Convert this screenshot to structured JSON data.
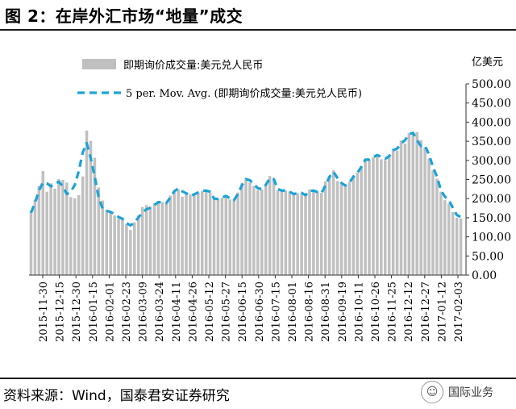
{
  "figure_title": "图 2：在岸外汇市场“地量”成交",
  "source_text": "资料来源：Wind，国泰君安证券研究",
  "watermark": "国际业务",
  "colors": {
    "bar": "#c0c0c0",
    "line": "#1aa3d9",
    "text": "#000000"
  },
  "chart_data": {
    "type": "bar",
    "unit": "亿美元",
    "legend": [
      {
        "label": "即期询价成交量:美元兑人民币",
        "kind": "bar"
      },
      {
        "label": "5 per. Mov. Avg. (即期询价成交量:美元兑人民币)",
        "kind": "dashed-line"
      }
    ],
    "legend_position": "top-left",
    "grid": false,
    "ylim": [
      0,
      500
    ],
    "y_ticks": [
      "500.00",
      "450.00",
      "400.00",
      "350.00",
      "300.00",
      "250.00",
      "200.00",
      "150.00",
      "100.00",
      "50.00",
      "0.00"
    ],
    "x_ticks": [
      "2015-11-30",
      "2015-12-15",
      "2015-12-30",
      "2016-01-15",
      "2016-02-01",
      "2016-02-23",
      "2016-03-09",
      "2016-03-24",
      "2016-04-11",
      "2016-04-26",
      "2016-05-12",
      "2016-05-27",
      "2016-06-15",
      "2016-06-30",
      "2016-07-15",
      "2016-08-01",
      "2016-08-16",
      "2016-08-31",
      "2016-09-19",
      "2016-10-11",
      "2016-10-26",
      "2016-11-25",
      "2016-12-12",
      "2016-12-27",
      "2017-01-12",
      "2017-02-03"
    ],
    "series": [
      {
        "name": "即期询价成交量:美元兑人民币",
        "type": "bar",
        "values": [
          168,
          197,
          233,
          272,
          218,
          240,
          226,
          251,
          249,
          242,
          204,
          201,
          209,
          258,
          378,
          351,
          307,
          229,
          195,
          171,
          166,
          156,
          148,
          150,
          133,
          118,
          138,
          156,
          178,
          183,
          180,
          188,
          193,
          191,
          186,
          208,
          217,
          225,
          205,
          212,
          211,
          214,
          215,
          220,
          220,
          217,
          199,
          200,
          202,
          205,
          198,
          199,
          216,
          240,
          251,
          242,
          233,
          222,
          224,
          238,
          259,
          253,
          222,
          220,
          221,
          219,
          209,
          214,
          214,
          211,
          224,
          219,
          217,
          215,
          245,
          258,
          274,
          246,
          239,
          231,
          244,
          261,
          268,
          284,
          303,
          300,
          308,
          314,
          303,
          300,
          309,
          331,
          326,
          352,
          344,
          371,
          372,
          374,
          353,
          334,
          305,
          274,
          252,
          218,
          196,
          187,
          165,
          150,
          148
        ]
      },
      {
        "name": "5 per. Mov. Avg. (即期询价成交量:美元兑人民币)",
        "type": "line",
        "values": [
          163,
          189,
          221,
          242,
          240,
          232,
          239,
          244,
          232,
          212,
          218,
          236,
          272,
          321,
          345,
          306,
          258,
          203,
          173,
          168,
          165,
          159,
          152,
          147,
          136,
          130,
          137,
          151,
          163,
          172,
          176,
          183,
          191,
          190,
          188,
          203,
          219,
          227,
          219,
          214,
          207,
          211,
          216,
          220,
          221,
          218,
          200,
          199,
          203,
          207,
          201,
          196,
          212,
          235,
          251,
          248,
          238,
          227,
          225,
          236,
          253,
          251,
          225,
          221,
          221,
          218,
          212,
          214,
          215,
          209,
          220,
          221,
          217,
          214,
          235,
          257,
          270,
          254,
          241,
          234,
          242,
          257,
          267,
          283,
          302,
          302,
          308,
          314,
          309,
          304,
          311,
          326,
          331,
          344,
          353,
          369,
          372,
          353,
          337,
          338,
          316,
          283,
          258,
          222,
          205,
          196,
          176,
          157,
          152
        ]
      }
    ]
  }
}
